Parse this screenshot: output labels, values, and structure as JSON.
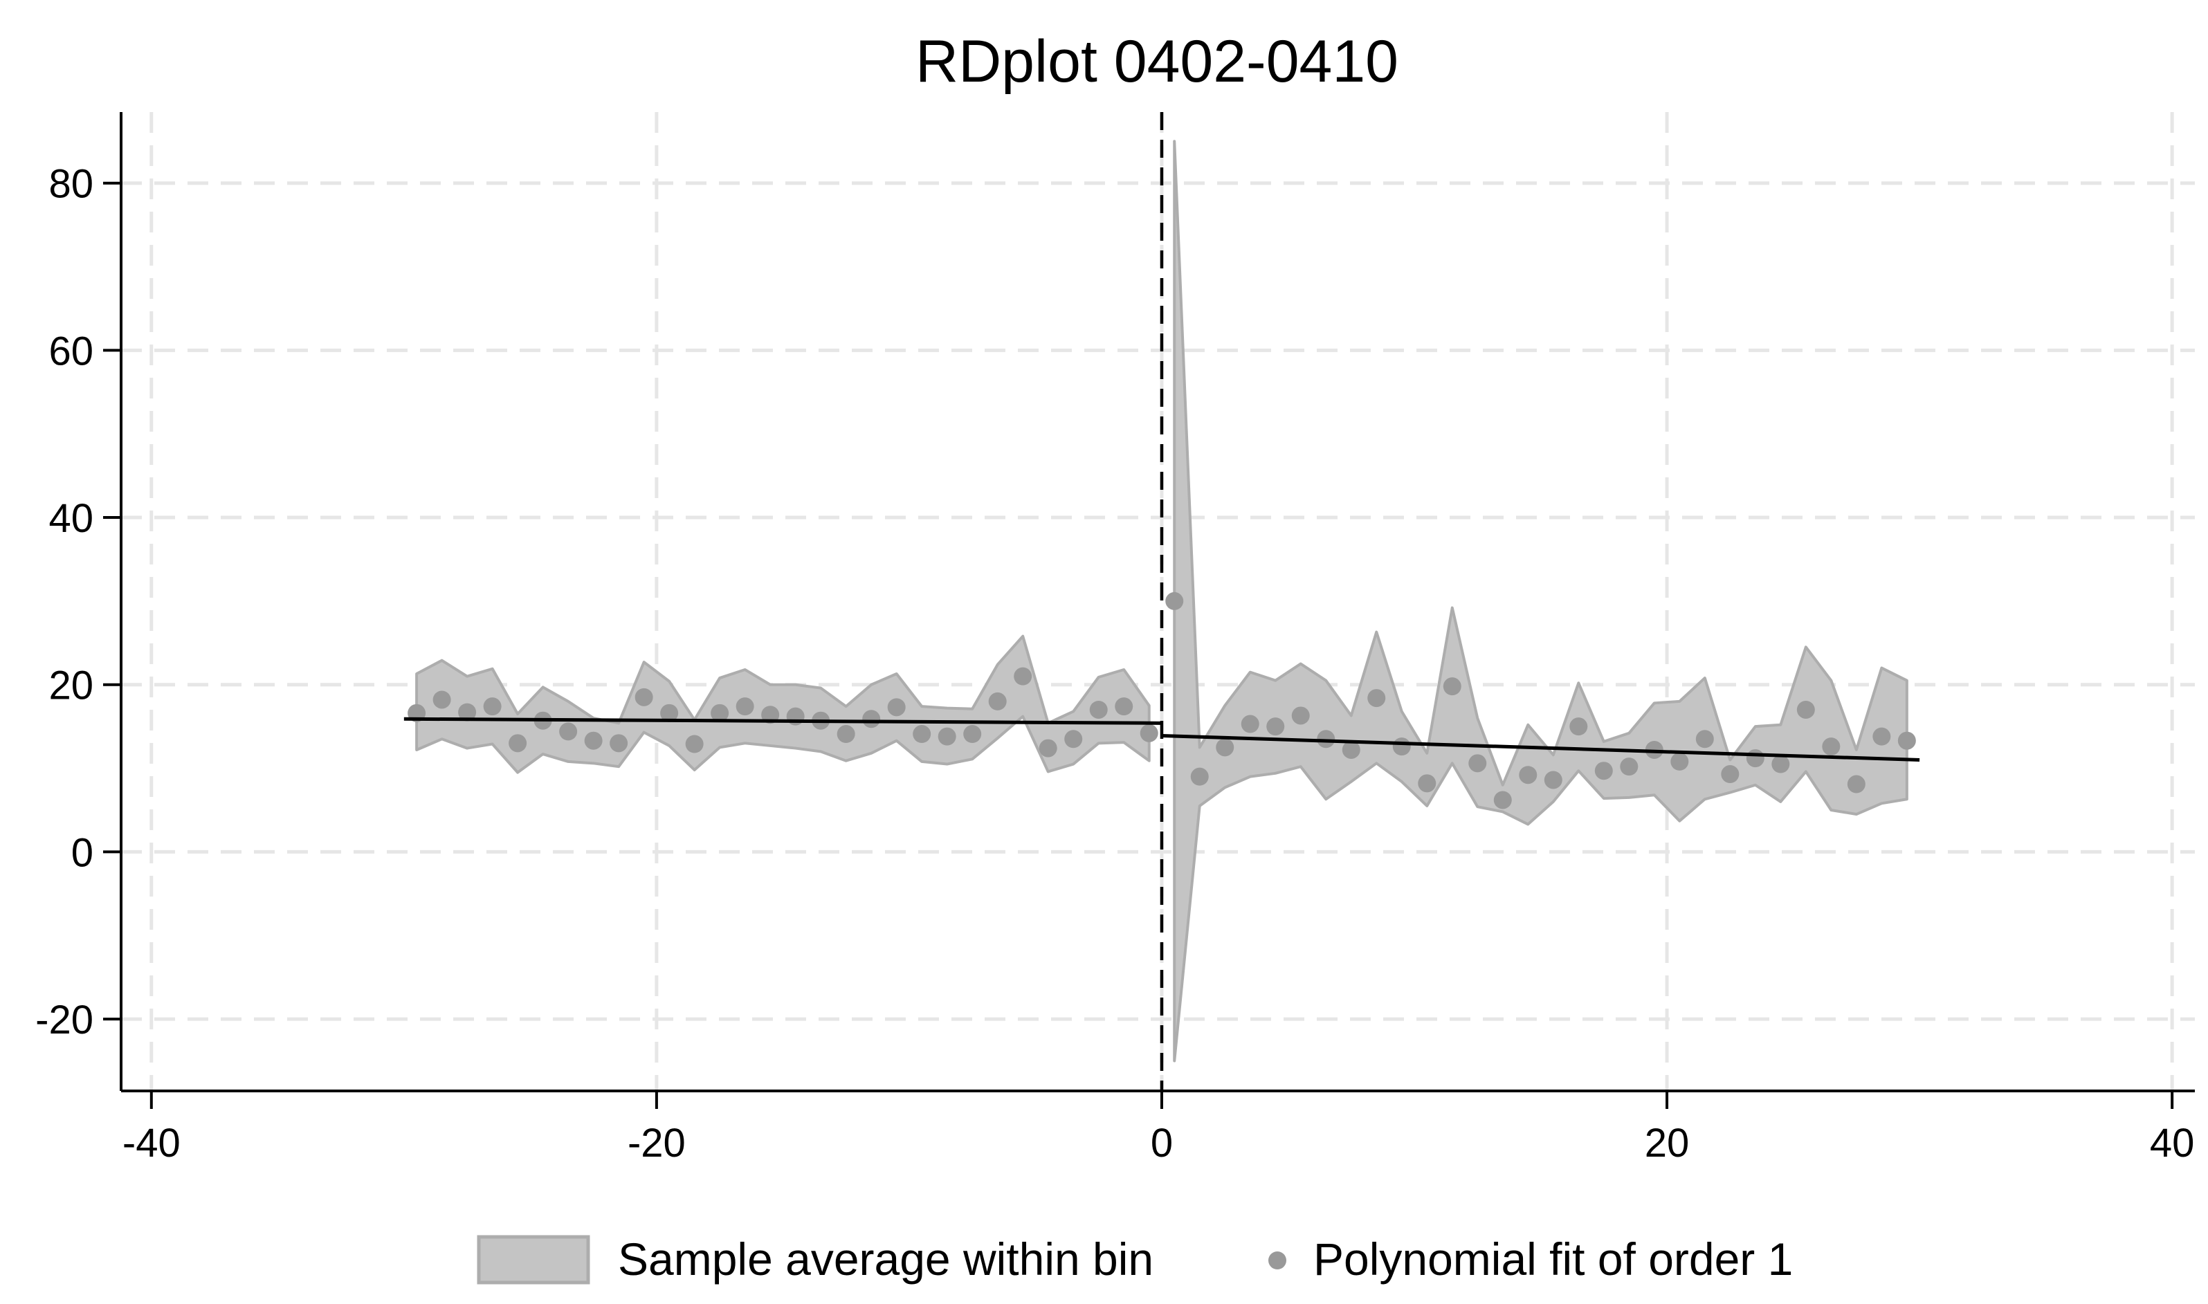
{
  "chart_data": {
    "type": "scatter",
    "title": "RDplot 0402-0410",
    "xlabel": "",
    "ylabel": "",
    "xlim": [
      -41.2,
      40.9
    ],
    "ylim": [
      -28.6,
      88.5
    ],
    "xticks": [
      -40,
      -20,
      0,
      20,
      40
    ],
    "yticks": [
      -20,
      0,
      20,
      40,
      60,
      80
    ],
    "xtick_labels": [
      "-40",
      "-20",
      "0",
      "20",
      "40"
    ],
    "ytick_labels": [
      "-20",
      "0",
      "20",
      "40",
      "60",
      "80"
    ],
    "cutoff": 0,
    "grid": true,
    "legend_position": "bottom",
    "legend": [
      {
        "label": "Sample average within bin",
        "symbol": "band"
      },
      {
        "label": "Polynomial fit of order 1",
        "symbol": "dot"
      }
    ],
    "colors": {
      "band": "#c4c4c4",
      "band_edge": "#adadad",
      "points": "#999999",
      "fit": "#000000",
      "grid": "#e6e6e6",
      "cutoff": "#000000"
    },
    "series": [
      {
        "name": "Sample average within bin",
        "type": "scatter",
        "x": [
          -29.5,
          -28.5,
          -27.5,
          -26.5,
          -25.5,
          -24.5,
          -23.5,
          -22.5,
          -21.5,
          -20.5,
          -19.5,
          -18.5,
          -17.5,
          -16.5,
          -15.5,
          -14.5,
          -13.5,
          -12.5,
          -11.5,
          -10.5,
          -9.5,
          -8.5,
          -7.5,
          -6.5,
          -5.5,
          -4.5,
          -3.5,
          -2.5,
          -1.5,
          -0.5,
          0.5,
          1.5,
          2.5,
          3.5,
          4.5,
          5.5,
          6.5,
          7.5,
          8.5,
          9.5,
          10.5,
          11.5,
          12.5,
          13.5,
          14.5,
          15.5,
          16.5,
          17.5,
          18.5,
          19.5,
          20.5,
          21.5,
          22.5,
          23.5,
          24.5,
          25.5,
          26.5,
          27.5,
          28.5,
          29.5
        ],
        "y": [
          16.6,
          18.2,
          16.7,
          17.4,
          13.0,
          15.7,
          14.4,
          13.3,
          13.0,
          18.5,
          16.6,
          12.9,
          16.6,
          17.4,
          16.4,
          16.2,
          15.7,
          14.1,
          15.9,
          17.3,
          14.1,
          13.8,
          14.1,
          18.0,
          21.0,
          12.4,
          13.5,
          17.0,
          17.4,
          14.2,
          30.0,
          9.0,
          12.5,
          15.3,
          15.0,
          16.3,
          13.5,
          12.2,
          18.4,
          12.6,
          8.2,
          19.8,
          10.6,
          6.2,
          9.2,
          8.6,
          15.0,
          9.7,
          10.2,
          12.2,
          10.8,
          13.5,
          9.3,
          11.2,
          10.5,
          17.0,
          12.6,
          8.1,
          13.8,
          13.3
        ]
      },
      {
        "name": "Confidence band",
        "type": "area",
        "x": [
          -29.5,
          -28.5,
          -27.5,
          -26.5,
          -25.5,
          -24.5,
          -23.5,
          -22.5,
          -21.5,
          -20.5,
          -19.5,
          -18.5,
          -17.5,
          -16.5,
          -15.5,
          -14.5,
          -13.5,
          -12.5,
          -11.5,
          -10.5,
          -9.5,
          -8.5,
          -7.5,
          -6.5,
          -5.5,
          -4.5,
          -3.5,
          -2.5,
          -1.5,
          -0.5,
          0.5,
          1.5,
          2.5,
          3.5,
          4.5,
          5.5,
          6.5,
          7.5,
          8.5,
          9.5,
          10.5,
          11.5,
          12.5,
          13.5,
          14.5,
          15.5,
          16.5,
          17.5,
          18.5,
          19.5,
          20.5,
          21.5,
          22.5,
          23.5,
          24.5,
          25.5,
          26.5,
          27.5,
          28.5,
          29.5
        ],
        "upper": [
          21.3,
          22.9,
          21.0,
          21.9,
          16.5,
          19.7,
          18.0,
          16.0,
          15.4,
          22.7,
          20.4,
          15.8,
          20.8,
          21.8,
          20.0,
          20.0,
          19.6,
          17.4,
          20.0,
          21.3,
          17.4,
          17.2,
          17.1,
          22.4,
          25.8,
          15.4,
          16.8,
          20.9,
          21.8,
          17.5,
          85.0,
          12.5,
          17.5,
          21.5,
          20.5,
          22.5,
          20.5,
          16.3,
          26.3,
          16.8,
          11.8,
          29.2,
          16.0,
          8.0,
          15.2,
          11.6,
          20.2,
          13.2,
          14.2,
          17.8,
          18.0,
          20.8,
          11.0,
          15.0,
          15.2,
          24.5,
          20.5,
          12.2,
          22.0,
          20.5
        ],
        "lower": [
          12.2,
          13.5,
          12.4,
          12.9,
          9.5,
          11.7,
          10.8,
          10.6,
          10.2,
          14.3,
          12.7,
          9.8,
          12.5,
          13.0,
          12.7,
          12.4,
          12.0,
          10.9,
          11.8,
          13.3,
          10.8,
          10.5,
          11.1,
          13.6,
          16.2,
          9.6,
          10.5,
          13.0,
          13.1,
          10.9,
          -25.0,
          5.5,
          7.7,
          9.0,
          9.4,
          10.2,
          6.3,
          8.4,
          10.6,
          8.4,
          5.5,
          10.6,
          5.4,
          4.8,
          3.3,
          6.0,
          9.7,
          6.4,
          6.5,
          6.8,
          3.7,
          6.3,
          7.1,
          8.0,
          6.0,
          9.6,
          5.0,
          4.5,
          5.8,
          6.3
        ]
      },
      {
        "name": "Polynomial fit of order 1",
        "type": "line",
        "segments": [
          {
            "x": [
              -30,
              0
            ],
            "y": [
              15.9,
              15.4
            ]
          },
          {
            "x": [
              0,
              30
            ],
            "y": [
              13.9,
              11.0
            ]
          }
        ]
      }
    ]
  }
}
